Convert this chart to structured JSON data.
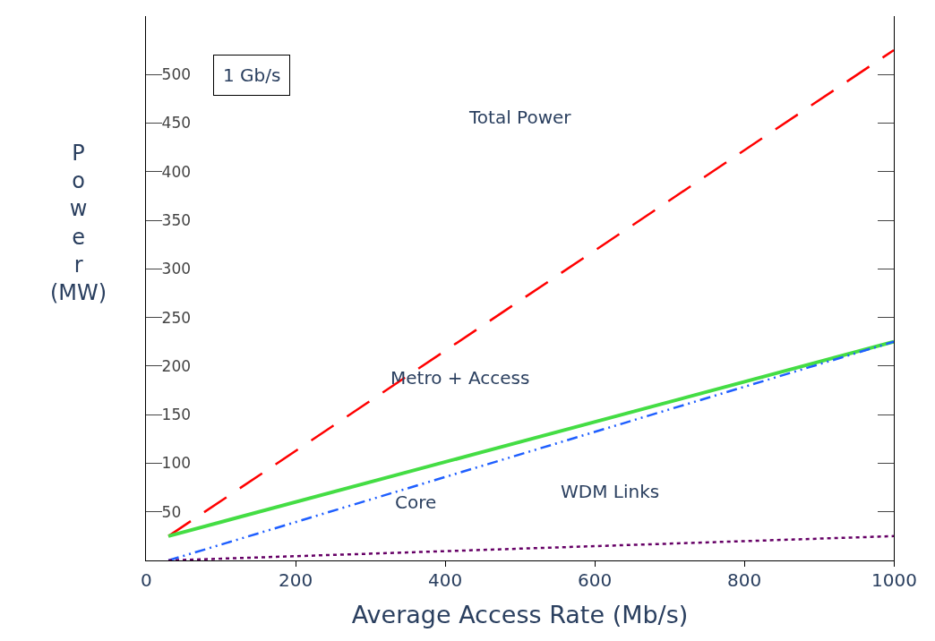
{
  "chart_data": {
    "type": "line",
    "xlabel": "Average Access Rate (Mb/s)",
    "ylabel": "Power (MW)",
    "xlim": [
      0,
      1000
    ],
    "xticks": [
      0,
      200,
      400,
      600,
      800,
      1000
    ],
    "ylim": [
      0,
      560
    ],
    "yticks": [
      50,
      100,
      150,
      200,
      250,
      300,
      350,
      400,
      450,
      500
    ],
    "x": [
      30,
      1000
    ],
    "series": [
      {
        "color": "#ff0000",
        "line_style": "dashed",
        "values": [
          25,
          525
        ]
      },
      {
        "color": "#44dd44",
        "line_style": "solid",
        "values": [
          25,
          225
        ]
      },
      {
        "color": "#1f5fff",
        "line_style": "dashdot",
        "values": [
          0,
          225
        ]
      },
      {
        "color": "#660066",
        "line_style": "dotted",
        "values": [
          0,
          25
        ]
      }
    ],
    "annotations": [
      "1 Gb/s",
      "Total Power",
      "Metro + Access",
      "Core",
      "WDM Links"
    ]
  }
}
